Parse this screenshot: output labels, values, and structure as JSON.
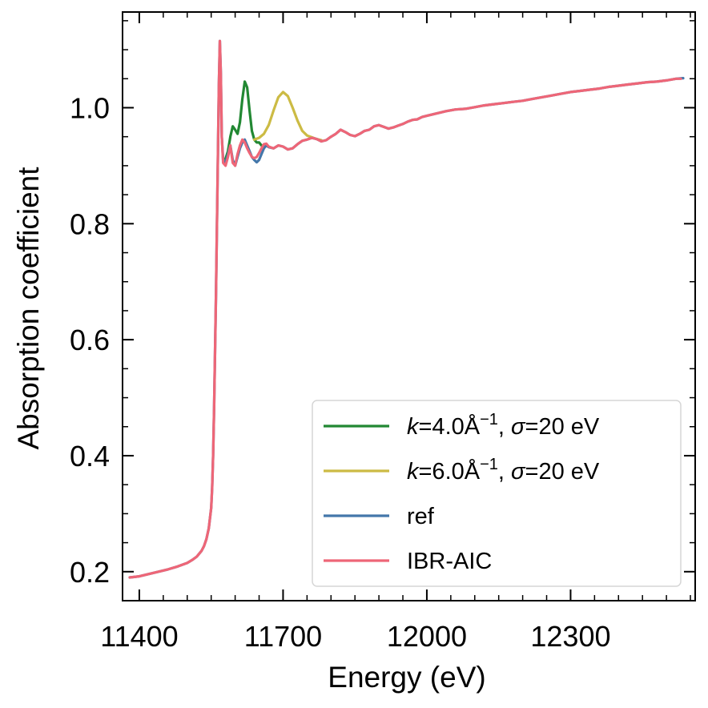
{
  "chart_data": {
    "type": "line",
    "title": "",
    "xlabel": "Energy (eV)",
    "ylabel": "Absorption coefficient",
    "xlim": [
      11365,
      12560
    ],
    "ylim": [
      0.15,
      1.165
    ],
    "xticks": [
      11400,
      11700,
      12000,
      12300
    ],
    "xtick_labels": [
      "11400",
      "11700",
      "12000",
      "12300"
    ],
    "yticks": [
      0.2,
      0.4,
      0.6,
      0.8,
      1.0
    ],
    "ytick_labels": [
      "0.2",
      "0.4",
      "0.6",
      "0.8",
      "1.0"
    ],
    "legend_position": "lower right",
    "series": [
      {
        "name": "ref",
        "label_parts": [
          "ref"
        ],
        "color": "#4477aa",
        "x": [
          11380,
          11400,
          11420,
          11440,
          11460,
          11480,
          11500,
          11510,
          11520,
          11530,
          11535,
          11540,
          11545,
          11550,
          11552,
          11554,
          11556,
          11558,
          11560,
          11562,
          11564,
          11566,
          11568,
          11570,
          11572,
          11575,
          11580,
          11585,
          11590,
          11595,
          11600,
          11605,
          11610,
          11615,
          11620,
          11625,
          11630,
          11635,
          11640,
          11645,
          11650,
          11655,
          11660,
          11665,
          11670,
          11680,
          11690,
          11700,
          11710,
          11720,
          11730,
          11740,
          11750,
          11760,
          11770,
          11780,
          11790,
          11800,
          11810,
          11820,
          11830,
          11840,
          11850,
          11860,
          11870,
          11880,
          11890,
          11900,
          11910,
          11920,
          11930,
          11940,
          11950,
          11960,
          11970,
          11980,
          11990,
          12000,
          12020,
          12040,
          12060,
          12080,
          12100,
          12120,
          12140,
          12160,
          12180,
          12200,
          12220,
          12240,
          12260,
          12280,
          12300,
          12320,
          12340,
          12360,
          12380,
          12400,
          12420,
          12440,
          12460,
          12480,
          12500,
          12520,
          12535
        ],
        "y": [
          0.19,
          0.192,
          0.196,
          0.2,
          0.204,
          0.209,
          0.215,
          0.22,
          0.226,
          0.236,
          0.244,
          0.256,
          0.275,
          0.31,
          0.345,
          0.4,
          0.48,
          0.58,
          0.68,
          0.8,
          0.92,
          1.04,
          1.115,
          1.06,
          0.95,
          0.91,
          0.905,
          0.92,
          0.935,
          0.91,
          0.9,
          0.915,
          0.93,
          0.94,
          0.945,
          0.935,
          0.925,
          0.915,
          0.91,
          0.906,
          0.91,
          0.92,
          0.93,
          0.935,
          0.932,
          0.93,
          0.935,
          0.933,
          0.928,
          0.93,
          0.937,
          0.943,
          0.945,
          0.948,
          0.946,
          0.942,
          0.944,
          0.95,
          0.955,
          0.962,
          0.958,
          0.953,
          0.951,
          0.955,
          0.96,
          0.962,
          0.968,
          0.97,
          0.967,
          0.964,
          0.966,
          0.969,
          0.972,
          0.976,
          0.979,
          0.98,
          0.984,
          0.986,
          0.99,
          0.994,
          0.997,
          0.998,
          1.001,
          1.004,
          1.006,
          1.008,
          1.01,
          1.012,
          1.015,
          1.018,
          1.021,
          1.024,
          1.027,
          1.029,
          1.031,
          1.033,
          1.036,
          1.038,
          1.04,
          1.042,
          1.044,
          1.045,
          1.047,
          1.05,
          1.051
        ]
      },
      {
        "name": "k=4.0Å^-1, σ=20 eV",
        "label_parts": [
          "k",
          "=4.0Å",
          "−1",
          ", ",
          "σ",
          "=20 eV"
        ],
        "color": "#228833",
        "x": [
          11580,
          11585,
          11590,
          11595,
          11600,
          11605,
          11610,
          11615,
          11620,
          11625,
          11630,
          11635,
          11640,
          11645,
          11650,
          11655,
          11660
        ],
        "y": [
          0.912,
          0.925,
          0.95,
          0.968,
          0.962,
          0.955,
          0.975,
          1.015,
          1.045,
          1.035,
          0.995,
          0.96,
          0.945,
          0.94,
          0.94,
          0.935,
          0.932
        ]
      },
      {
        "name": "k=6.0Å^-1, σ=20 eV",
        "label_parts": [
          "k",
          "=6.0Å",
          "−1",
          ", ",
          "σ",
          "=20 eV"
        ],
        "color": "#ccbb44",
        "x": [
          11640,
          11650,
          11660,
          11670,
          11680,
          11690,
          11700,
          11710,
          11720,
          11730,
          11740,
          11750,
          11760,
          11770,
          11780
        ],
        "y": [
          0.945,
          0.948,
          0.955,
          0.97,
          0.995,
          1.018,
          1.027,
          1.02,
          1.0,
          0.978,
          0.96,
          0.952,
          0.949,
          0.946,
          0.944
        ]
      },
      {
        "name": "IBR-AIC",
        "label_parts": [
          "IBR-AIC"
        ],
        "color": "#ee6677",
        "x": [
          11380,
          11400,
          11420,
          11440,
          11460,
          11480,
          11500,
          11510,
          11520,
          11530,
          11535,
          11540,
          11545,
          11550,
          11552,
          11554,
          11556,
          11558,
          11560,
          11562,
          11564,
          11566,
          11568,
          11570,
          11572,
          11575,
          11580,
          11585,
          11590,
          11595,
          11600,
          11605,
          11610,
          11615,
          11620,
          11625,
          11630,
          11635,
          11640,
          11645,
          11650,
          11655,
          11660,
          11665,
          11670,
          11680,
          11690,
          11700,
          11710,
          11720,
          11730,
          11740,
          11750,
          11760,
          11770,
          11780,
          11790,
          11800,
          11810,
          11820,
          11830,
          11840,
          11850,
          11860,
          11870,
          11880,
          11890,
          11900,
          11910,
          11920,
          11930,
          11940,
          11950,
          11960,
          11970,
          11980,
          11990,
          12000,
          12020,
          12040,
          12060,
          12080,
          12100,
          12120,
          12140,
          12160,
          12180,
          12200,
          12220,
          12240,
          12260,
          12280,
          12300,
          12320,
          12340,
          12360,
          12380,
          12400,
          12420,
          12440,
          12460,
          12480,
          12500,
          12520,
          12530
        ],
        "y": [
          0.19,
          0.192,
          0.196,
          0.2,
          0.204,
          0.209,
          0.215,
          0.22,
          0.226,
          0.236,
          0.244,
          0.256,
          0.275,
          0.31,
          0.345,
          0.4,
          0.48,
          0.58,
          0.68,
          0.8,
          0.92,
          1.04,
          1.115,
          1.06,
          0.95,
          0.905,
          0.9,
          0.915,
          0.935,
          0.905,
          0.9,
          0.92,
          0.935,
          0.945,
          0.94,
          0.93,
          0.922,
          0.915,
          0.913,
          0.915,
          0.922,
          0.93,
          0.937,
          0.938,
          0.933,
          0.93,
          0.935,
          0.933,
          0.928,
          0.93,
          0.937,
          0.943,
          0.945,
          0.948,
          0.946,
          0.942,
          0.944,
          0.95,
          0.955,
          0.962,
          0.958,
          0.953,
          0.951,
          0.955,
          0.96,
          0.962,
          0.968,
          0.97,
          0.967,
          0.964,
          0.966,
          0.969,
          0.972,
          0.976,
          0.979,
          0.98,
          0.984,
          0.986,
          0.99,
          0.994,
          0.997,
          0.998,
          1.001,
          1.004,
          1.006,
          1.008,
          1.01,
          1.012,
          1.015,
          1.018,
          1.021,
          1.024,
          1.027,
          1.029,
          1.031,
          1.033,
          1.036,
          1.038,
          1.04,
          1.042,
          1.044,
          1.045,
          1.047,
          1.05,
          1.05
        ]
      }
    ],
    "legend_order": [
      "k=4.0Å^-1, σ=20 eV",
      "k=6.0Å^-1, σ=20 eV",
      "ref",
      "IBR-AIC"
    ]
  }
}
